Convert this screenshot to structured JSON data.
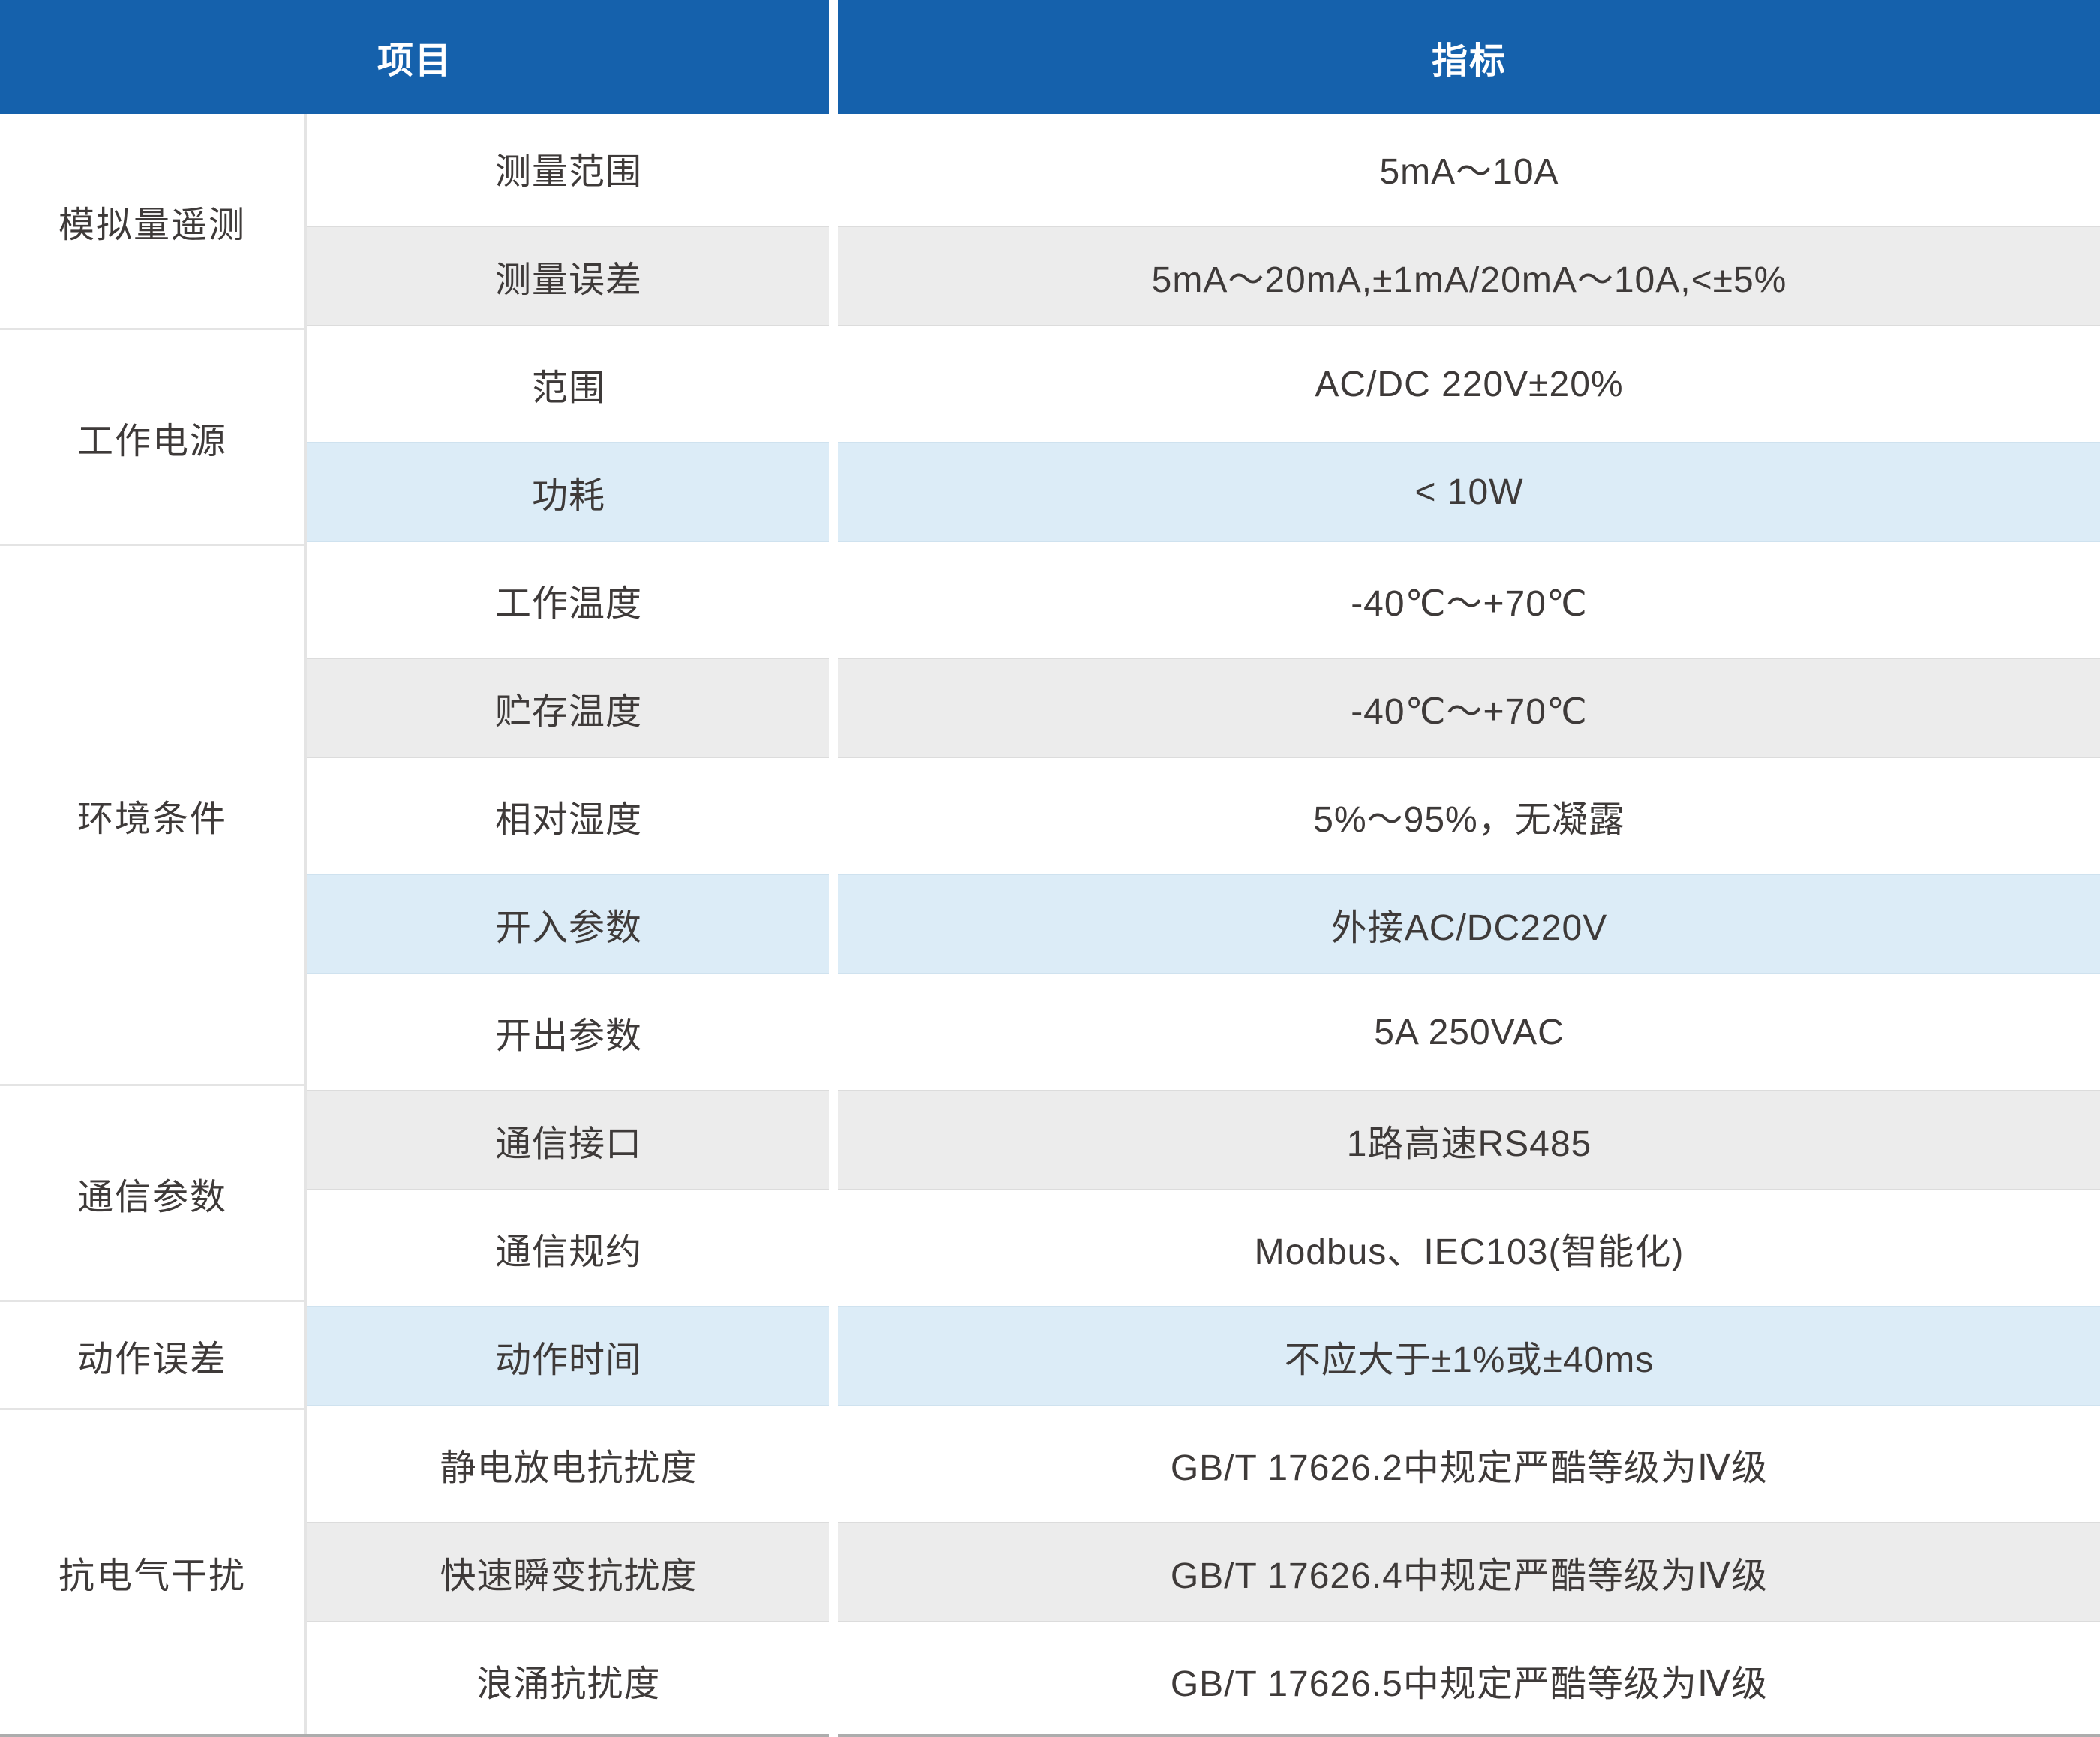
{
  "header": {
    "item": "项目",
    "spec": "指标"
  },
  "groups": [
    {
      "name": "模拟量遥测",
      "rows": [
        {
          "item": "测量范围",
          "value": "5mA～10A"
        },
        {
          "item": "测量误差",
          "value": "5mA～20mA,±1mA/20mA～10A,<±5%"
        }
      ]
    },
    {
      "name": "工作电源",
      "rows": [
        {
          "item": "范围",
          "value": "AC/DC 220V±20%"
        },
        {
          "item": "功耗",
          "value": "< 10W"
        }
      ]
    },
    {
      "name": "环境条件",
      "rows": [
        {
          "item": "工作温度",
          "value": "-40℃～+70℃"
        },
        {
          "item": "贮存温度",
          "value": "-40℃～+70℃"
        },
        {
          "item": "相对湿度",
          "value": "5%～95%，无凝露"
        },
        {
          "item": "开入参数",
          "value": "外接AC/DC220V"
        },
        {
          "item": "开出参数",
          "value": "5A 250VAC"
        }
      ]
    },
    {
      "name": "通信参数",
      "rows": [
        {
          "item": "通信接口",
          "value": "1路高速RS485"
        },
        {
          "item": "通信规约",
          "value": "Modbus、IEC103(智能化)"
        }
      ]
    },
    {
      "name": "动作误差",
      "rows": [
        {
          "item": "动作时间",
          "value": "不应大于±1%或±40ms"
        }
      ]
    },
    {
      "name": "抗电气干扰",
      "rows": [
        {
          "item": "静电放电抗扰度",
          "value": "GB/T 17626.2中规定严酷等级为Ⅳ级"
        },
        {
          "item": "快速瞬变抗扰度",
          "value": "GB/T 17626.4中规定严酷等级为Ⅳ级"
        },
        {
          "item": "浪涌抗扰度",
          "value": "GB/T 17626.5中规定严酷等级为Ⅳ级"
        }
      ]
    }
  ],
  "colors": {
    "header_blue": "#1561ac",
    "row_gray": "#ececec",
    "row_blue": "#dcecf7",
    "text_dark": "#3e3a39",
    "line_light": "#e4e4e4",
    "line_bottom": "#adadad"
  }
}
